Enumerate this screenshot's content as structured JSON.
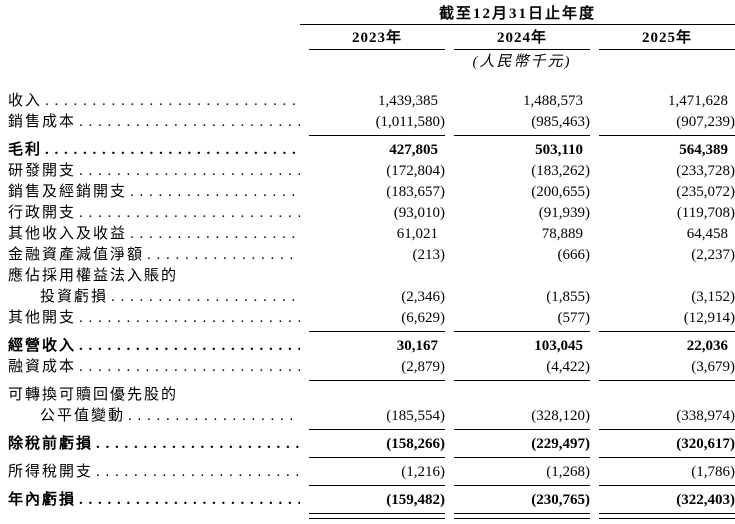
{
  "table": {
    "period_header": "截至12月31日止年度",
    "columns": [
      "2023年",
      "2024年",
      "2025年"
    ],
    "unit_note": "(人民幣千元)",
    "rows": [
      {
        "label": "收入",
        "dots": true,
        "values": [
          "1,439,385",
          "1,488,573",
          "1,471,628"
        ]
      },
      {
        "label": "銷售成本",
        "dots": true,
        "values": [
          "(1,011,580)",
          "(985,463)",
          "(907,239)"
        ],
        "rule": "single"
      },
      {
        "label": "毛利",
        "bold": true,
        "dots": true,
        "values": [
          "427,805",
          "503,110",
          "564,389"
        ]
      },
      {
        "label": "研發開支",
        "dots": true,
        "values": [
          "(172,804)",
          "(183,262)",
          "(233,728)"
        ]
      },
      {
        "label": "銷售及經銷開支",
        "dots": true,
        "values": [
          "(183,657)",
          "(200,655)",
          "(235,072)"
        ]
      },
      {
        "label": "行政開支",
        "dots": true,
        "values": [
          "(93,010)",
          "(91,939)",
          "(119,708)"
        ]
      },
      {
        "label": "其他收入及收益",
        "dots": true,
        "values": [
          "61,021",
          "78,889",
          "64,458"
        ]
      },
      {
        "label": "金融資產減值淨額",
        "dots": true,
        "values": [
          "(213)",
          "(666)",
          "(2,237)"
        ]
      },
      {
        "label": "應佔採用權益法入賬的",
        "dots": false,
        "values": null
      },
      {
        "label": "投資虧損",
        "indent": true,
        "dots": true,
        "values": [
          "(2,346)",
          "(1,855)",
          "(3,152)"
        ]
      },
      {
        "label": "其他開支",
        "dots": true,
        "values": [
          "(6,629)",
          "(577)",
          "(12,914)"
        ],
        "rule": "single"
      },
      {
        "label": "經營收入",
        "bold": true,
        "dots": true,
        "values": [
          "30,167",
          "103,045",
          "22,036"
        ]
      },
      {
        "label": "融資成本",
        "dots": true,
        "values": [
          "(2,879)",
          "(4,422)",
          "(3,679)"
        ],
        "rule": "single"
      },
      {
        "label": "可轉換可贖回優先股的",
        "dots": false,
        "values": null
      },
      {
        "label": "公平值變動",
        "indent": true,
        "dots": true,
        "values": [
          "(185,554)",
          "(328,120)",
          "(338,974)"
        ],
        "rule": "single"
      },
      {
        "label": "除稅前虧損",
        "bold": true,
        "dots": true,
        "values": [
          "(158,266)",
          "(229,497)",
          "(320,617)"
        ],
        "rule": "single"
      },
      {
        "label": "所得稅開支",
        "dots": true,
        "values": [
          "(1,216)",
          "(1,268)",
          "(1,786)"
        ],
        "rule": "single"
      },
      {
        "label": "年內虧損",
        "bold": true,
        "dots": true,
        "values": [
          "(159,482)",
          "(230,765)",
          "(322,403)"
        ],
        "rule": "double"
      }
    ]
  }
}
